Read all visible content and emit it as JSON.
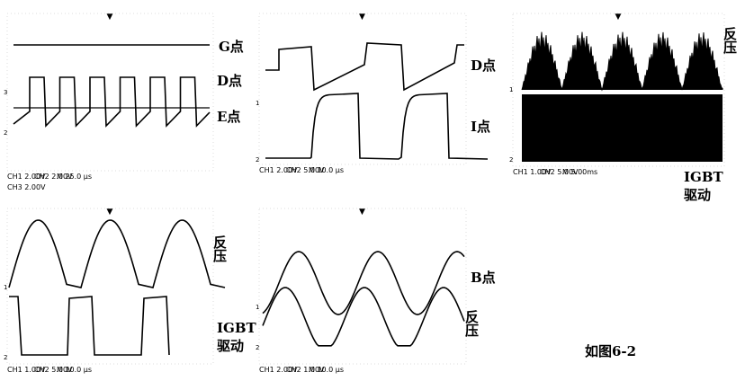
{
  "panels": [
    {
      "labels": [
        "G点",
        "D点",
        "E点"
      ],
      "channels": [
        "3",
        "2"
      ],
      "footer": [
        "CH1  2.00V",
        "CH2  2.00V",
        "M 25.0 μs",
        "CH3  2.00V"
      ]
    },
    {
      "labels": [
        "D点",
        "I点"
      ],
      "channels": [
        "1",
        "2"
      ],
      "footer": [
        "CH1  2.00V",
        "CH2  5.00V",
        "M 10.0 μs"
      ]
    },
    {
      "labels": [
        "反压",
        "IGBT",
        "驱动"
      ],
      "channels": [
        "1",
        "2"
      ],
      "footer": [
        "CH1  1.00V",
        "CH2  5.00V",
        "M 5.00ms"
      ]
    },
    {
      "labels": [
        "反压",
        "IGBT",
        "驱动"
      ],
      "channels": [
        "1",
        "2"
      ],
      "footer": [
        "CH1  1.00V",
        "CH2  5.00V",
        "M 10.0 μs"
      ]
    },
    {
      "labels": [
        "B点",
        "反压"
      ],
      "channels": [
        "1",
        "2"
      ],
      "footer": [
        "CH1  2.00V",
        "CH2  1.00V",
        "M 10.0 μs"
      ]
    }
  ],
  "caption": "如图6-2"
}
